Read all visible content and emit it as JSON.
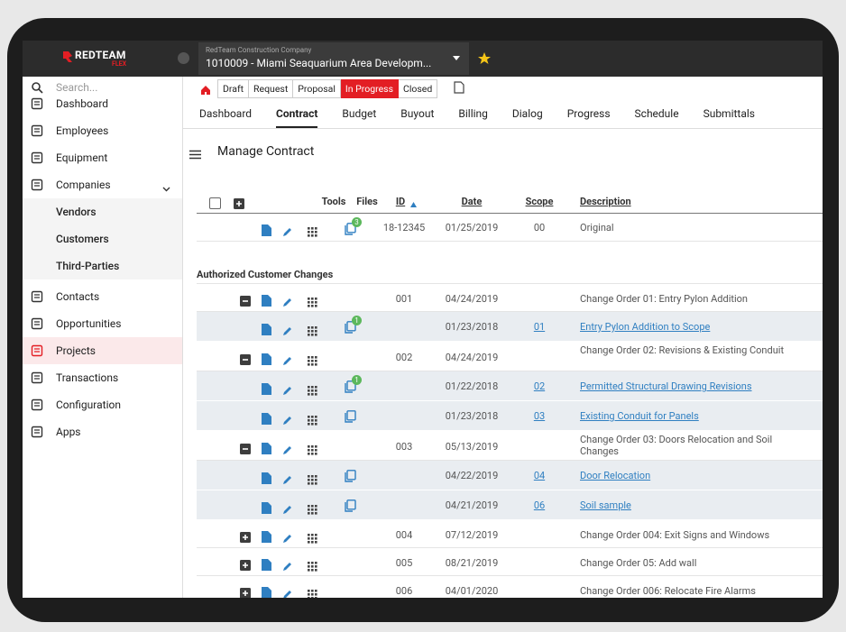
{
  "logo": {
    "brand": "REDTEAM",
    "sub": "FLEX"
  },
  "header": {
    "company": "RedTeam Construction Company",
    "project": "1010009 - Miami Seaquarium Area Developm..."
  },
  "search": "Search...",
  "nav": [
    {
      "label": "Dashboard"
    },
    {
      "label": "Employees"
    },
    {
      "label": "Equipment"
    },
    {
      "label": "Companies",
      "expandable": true
    },
    {
      "label": "Vendors",
      "submenu": true
    },
    {
      "label": "Customers",
      "submenu": true
    },
    {
      "label": "Third-Parties",
      "submenu": true
    },
    {
      "label": "Contacts"
    },
    {
      "label": "Opportunities"
    },
    {
      "label": "Projects",
      "active": true
    },
    {
      "label": "Transactions"
    },
    {
      "label": "Configuration"
    },
    {
      "label": "Apps"
    }
  ],
  "status_steps": [
    "Draft",
    "Request",
    "Proposal",
    "In Progress",
    "Closed"
  ],
  "active_step": 3,
  "tabs": [
    "Dashboard",
    "Contract",
    "Budget",
    "Buyout",
    "Billing",
    "Dialog",
    "Progress",
    "Schedule",
    "Submittals"
  ],
  "active_tab": 1,
  "page_title": "Manage Contract",
  "columns": [
    {
      "label": "Tools"
    },
    {
      "label": "Files"
    },
    {
      "label": "ID",
      "sortable": true,
      "sorted": "asc"
    },
    {
      "label": "Date",
      "sortable": true
    },
    {
      "label": "Scope",
      "sortable": true
    },
    {
      "label": "Description",
      "sortable": true
    }
  ],
  "original": {
    "id": "18-12345",
    "date": "01/25/2019",
    "scope": "00",
    "description": "Original",
    "badge": 3
  },
  "section": "Authorized Customer Changes",
  "changes": [
    {
      "id": "001",
      "date": "04/24/2019",
      "description": "Change Order 01: Entry Pylon Addition",
      "expanded": true,
      "items": [
        {
          "date": "01/23/2018",
          "scope": "01",
          "description": "Entry Pylon Addition to Scope",
          "badge": 1
        }
      ]
    },
    {
      "id": "002",
      "date": "04/24/2019",
      "description": "Change Order 02: Revisions & Existing Conduit",
      "expanded": true,
      "items": [
        {
          "date": "01/22/2018",
          "scope": "02",
          "description": "Permitted Structural Drawing Revisions",
          "badge": 1
        },
        {
          "date": "01/23/2018",
          "scope": "03",
          "description": "Existing Conduit for Panels"
        }
      ]
    },
    {
      "id": "003",
      "date": "05/13/2019",
      "description": "Change Order 03: Doors Relocation and Soil Changes",
      "expanded": true,
      "items": [
        {
          "date": "04/22/2019",
          "scope": "04",
          "description": "Door Relocation"
        },
        {
          "date": "04/21/2019",
          "scope": "06",
          "description": "Soil sample"
        }
      ]
    },
    {
      "id": "004",
      "date": "07/12/2019",
      "description": "Change Order 004: Exit Signs and Windows",
      "expanded": false,
      "items": []
    },
    {
      "id": "005",
      "date": "08/21/2019",
      "description": "Change Order 05: Add wall",
      "expanded": false,
      "items": []
    },
    {
      "id": "006",
      "date": "04/01/2020",
      "description": "Change Order 006: Relocate Fire Alarms",
      "expanded": false,
      "items": []
    }
  ]
}
